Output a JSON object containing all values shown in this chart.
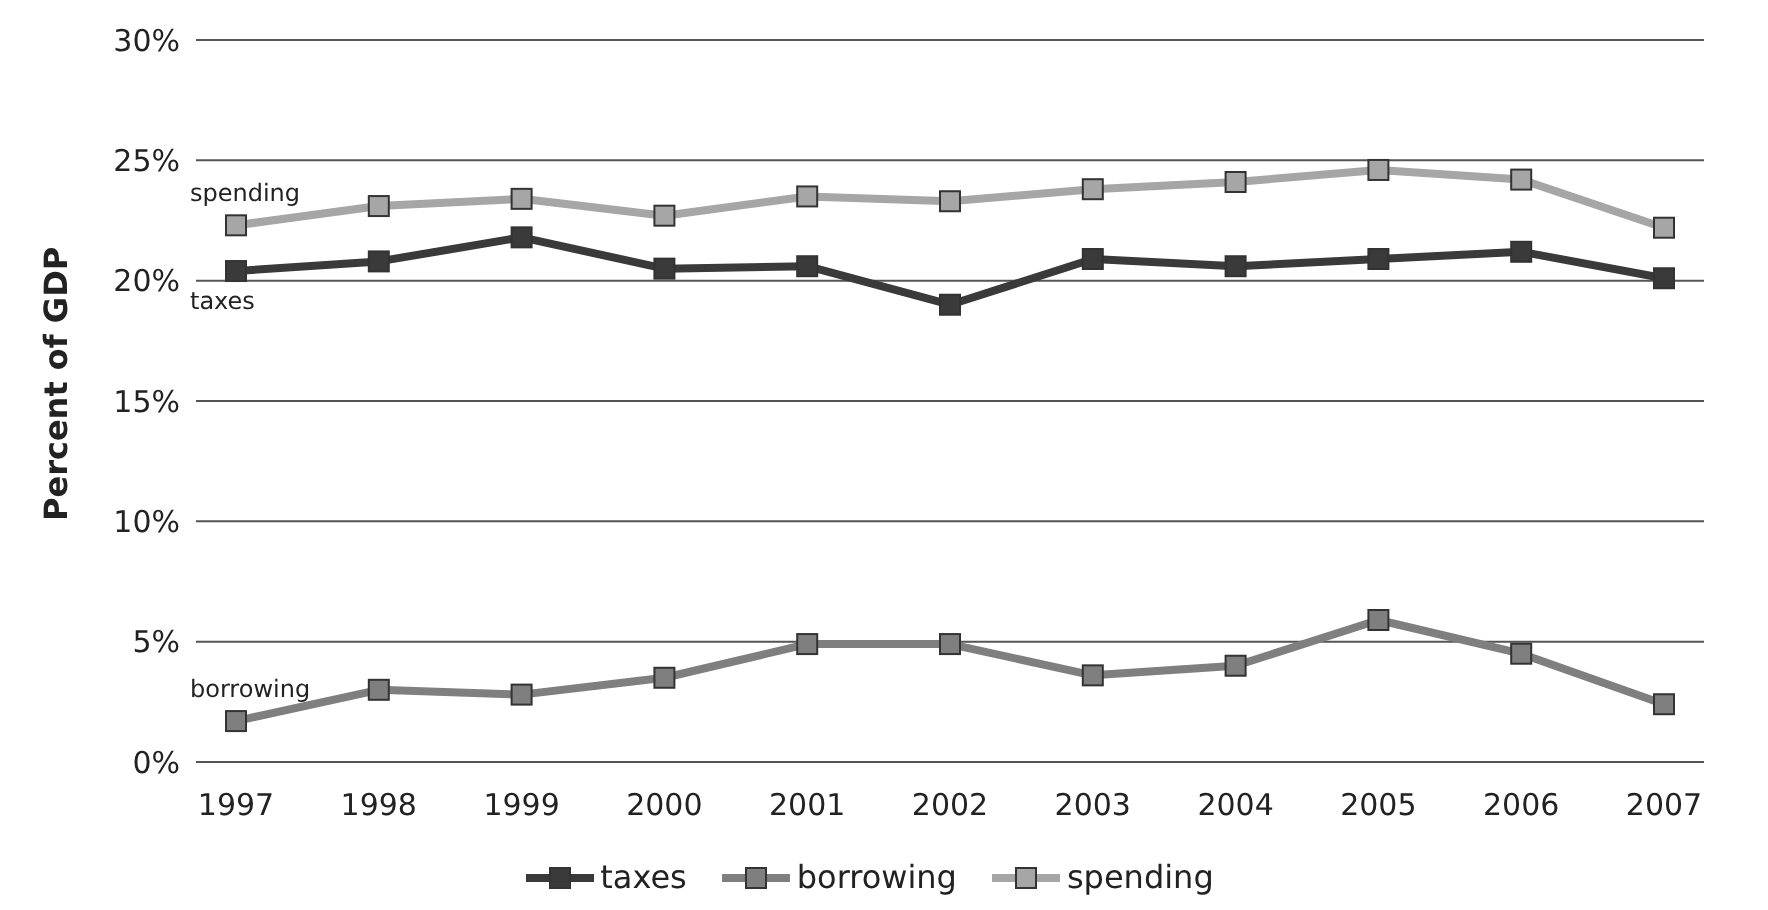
{
  "chart_data": {
    "type": "line",
    "ylabel": "Percent of GDP",
    "categories": [
      "1997",
      "1998",
      "1999",
      "2000",
      "2001",
      "2002",
      "2003",
      "2004",
      "2005",
      "2006",
      "2007"
    ],
    "series": [
      {
        "name": "taxes",
        "color": "#3a3a3a",
        "values": [
          20.4,
          20.8,
          21.8,
          20.5,
          20.6,
          19.0,
          20.9,
          20.6,
          20.9,
          21.2,
          20.1
        ]
      },
      {
        "name": "borrowing",
        "color": "#7f7f7f",
        "values": [
          1.7,
          3.0,
          2.8,
          3.5,
          4.9,
          4.9,
          3.6,
          4.0,
          5.9,
          4.5,
          2.4
        ]
      },
      {
        "name": "spending",
        "color": "#a6a6a6",
        "values": [
          22.3,
          23.1,
          23.4,
          22.7,
          23.5,
          23.3,
          23.8,
          24.1,
          24.6,
          24.2,
          22.2
        ]
      }
    ],
    "ylim": [
      0,
      30
    ],
    "yticks": [
      {
        "value": 0,
        "label": "0%"
      },
      {
        "value": 5,
        "label": "5%"
      },
      {
        "value": 10,
        "label": "10%"
      },
      {
        "value": 15,
        "label": "15%"
      },
      {
        "value": 20,
        "label": "20%"
      },
      {
        "value": 25,
        "label": "25%"
      },
      {
        "value": 30,
        "label": "30%"
      }
    ],
    "grid": "y",
    "legend": "bottom",
    "marker": "square",
    "line_style": "solid"
  }
}
